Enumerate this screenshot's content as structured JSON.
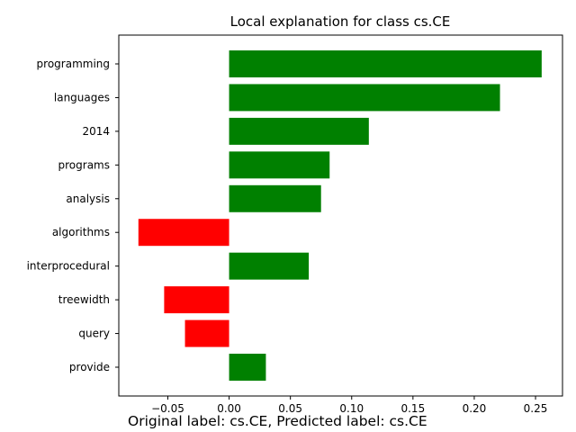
{
  "chart_data": {
    "type": "bar",
    "orientation": "horizontal",
    "title": "Local explanation for class cs.CE",
    "xlabel": "",
    "ylabel": "",
    "categories": [
      "programming",
      "languages",
      "2014",
      "programs",
      "analysis",
      "algorithms",
      "interprocedural",
      "treewidth",
      "query",
      "provide"
    ],
    "values": [
      0.255,
      0.221,
      0.114,
      0.082,
      0.075,
      -0.074,
      0.065,
      -0.053,
      -0.036,
      0.03
    ],
    "xlim": [
      -0.09,
      0.272
    ],
    "xticks": [
      -0.05,
      0.0,
      0.05,
      0.1,
      0.15,
      0.2,
      0.25
    ],
    "xtick_labels": [
      "−0.05",
      "0.00",
      "0.05",
      "0.10",
      "0.15",
      "0.20",
      "0.25"
    ],
    "grid": false,
    "colors": {
      "positive": "#008000",
      "negative": "#ff0000"
    }
  },
  "caption": "Original label: cs.CE, Predicted label: cs.CE"
}
